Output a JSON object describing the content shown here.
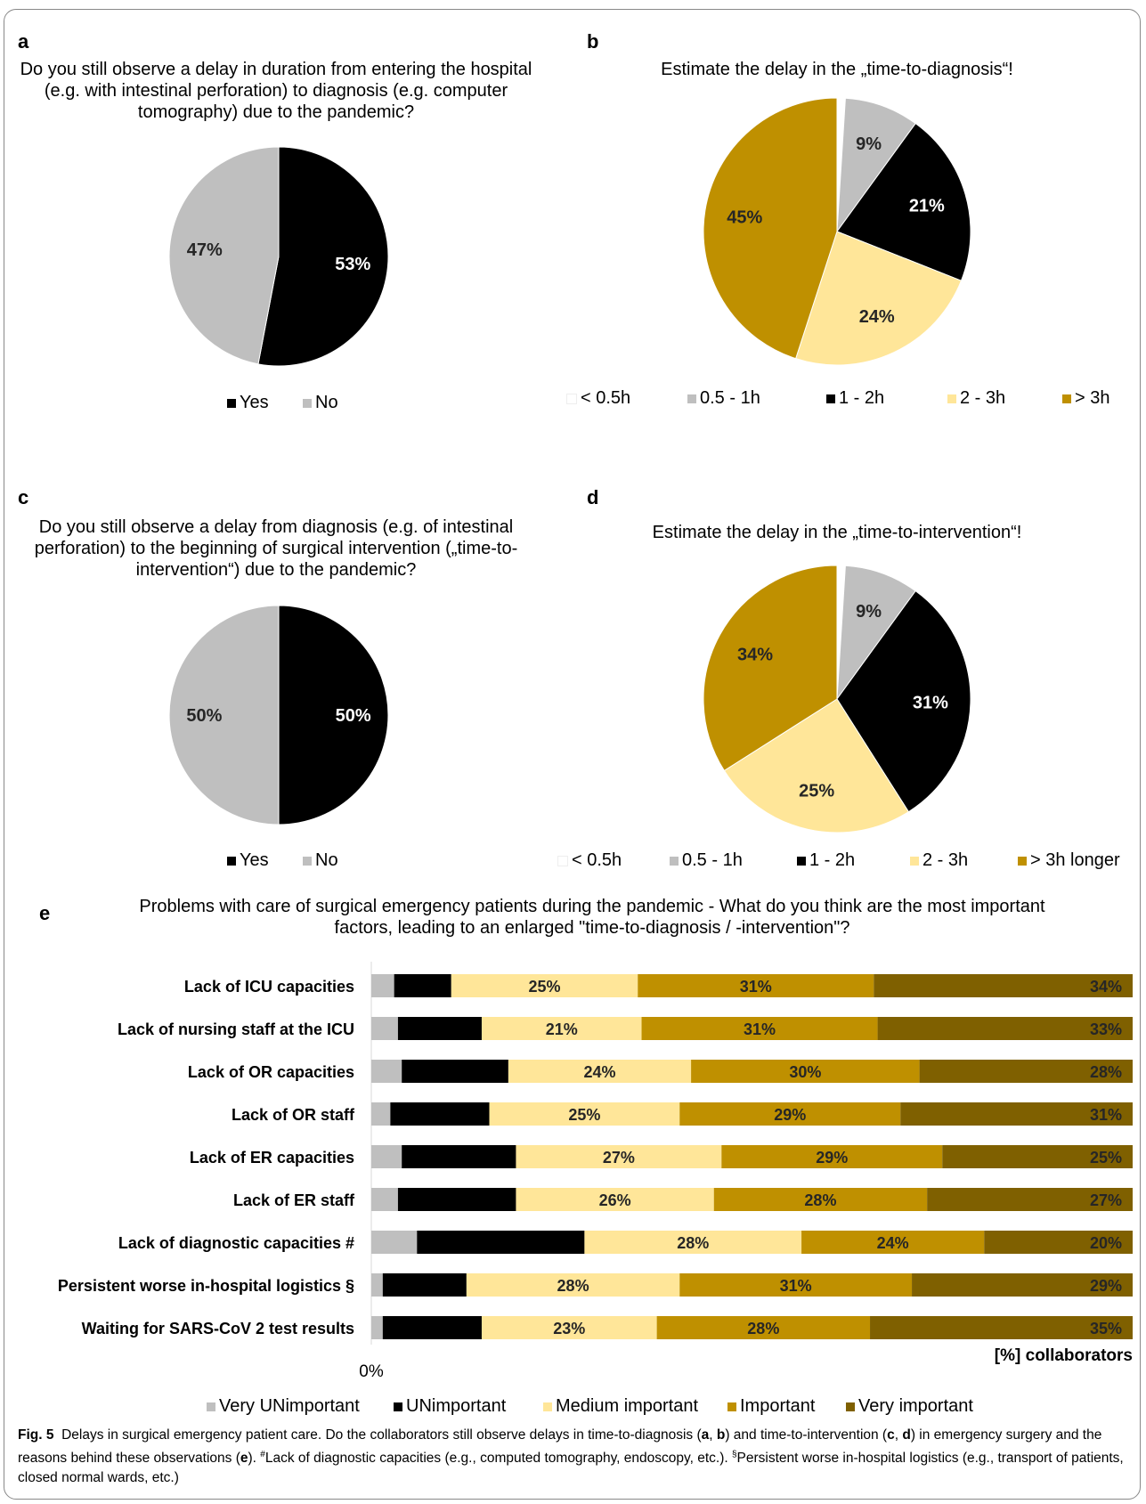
{
  "panels": {
    "a": {
      "letter": "a",
      "title": "Do you still observe a delay in duration from entering the hospital (e.g. with intestinal perforation) to diagnosis (e.g. computer tomography) due to the pandemic?"
    },
    "b": {
      "letter": "b",
      "title": "Estimate the delay in the „time-to-diagnosis“!"
    },
    "c": {
      "letter": "c",
      "title": "Do you still observe a delay from diagnosis (e.g. of intestinal perforation) to the beginning of surgical intervention („time-to-intervention“) due to the pandemic?"
    },
    "d": {
      "letter": "d",
      "title": "Estimate the delay in the „time-to-intervention“!"
    },
    "e": {
      "letter": "e",
      "title": "Problems with care of surgical emergency patients during the pandemic - What do you think are the most important factors, leading to an enlarged \"time-to-diagnosis / -intervention\"?"
    }
  },
  "chart_data": [
    {
      "type": "pie",
      "panel": "a",
      "categories": [
        "Yes",
        "No"
      ],
      "values": [
        53,
        47
      ],
      "labels": [
        "53%",
        "47%"
      ],
      "colors": [
        "#000000",
        "#bfbfbf"
      ],
      "legend": {
        "position": "bottom",
        "entries": [
          "Yes",
          "No"
        ]
      }
    },
    {
      "type": "pie",
      "panel": "b",
      "categories": [
        "< 0.5h",
        "0.5 - 1h",
        "1 - 2h",
        "2 - 3h",
        "> 3h"
      ],
      "values": [
        1,
        9,
        21,
        24,
        45
      ],
      "labels": [
        "",
        "9%",
        "21%",
        "24%",
        "45%"
      ],
      "colors": [
        "#ffffff",
        "#bfbfbf",
        "#000000",
        "#ffe699",
        "#bf9000"
      ],
      "legend": {
        "position": "bottom",
        "entries": [
          "< 0.5h",
          "0.5 - 1h",
          "1 - 2h",
          "2 - 3h",
          "> 3h"
        ]
      }
    },
    {
      "type": "pie",
      "panel": "c",
      "categories": [
        "Yes",
        "No"
      ],
      "values": [
        50,
        50
      ],
      "labels": [
        "50%",
        "50%"
      ],
      "colors": [
        "#000000",
        "#bfbfbf"
      ],
      "legend": {
        "position": "bottom",
        "entries": [
          "Yes",
          "No"
        ]
      }
    },
    {
      "type": "pie",
      "panel": "d",
      "categories": [
        "< 0.5h",
        "0.5 - 1h",
        "1 - 2h",
        "2 - 3h",
        "> 3h longer"
      ],
      "values": [
        1,
        9,
        31,
        25,
        34
      ],
      "labels": [
        "",
        "9%",
        "31%",
        "25%",
        "34%"
      ],
      "colors": [
        "#ffffff",
        "#bfbfbf",
        "#000000",
        "#ffe699",
        "#bf9000"
      ],
      "legend": {
        "position": "bottom",
        "entries": [
          "< 0.5h",
          "0.5 - 1h",
          "1 - 2h",
          "2 - 3h",
          "> 3h longer"
        ]
      }
    },
    {
      "type": "bar",
      "orientation": "horizontal",
      "stacked": true,
      "panel": "e",
      "categories": [
        "Lack of ICU capacities",
        "Lack of nursing staff at the ICU",
        "Lack of OR capacities",
        "Lack of OR staff",
        "Lack of ER capacities",
        "Lack of ER staff",
        "Lack of diagnostic capacities #",
        "Persistent worse in-hospital logistics §",
        "Waiting for SARS-CoV 2 test results"
      ],
      "series": [
        {
          "name": "Very UNimportant",
          "color": "#bfbfbf",
          "values": [
            3,
            3.5,
            4,
            2.5,
            4,
            3.5,
            6,
            1.5,
            1.5
          ],
          "labels": [
            "",
            "",
            "",
            "",
            "",
            "",
            "",
            "",
            ""
          ]
        },
        {
          "name": "UNimportant",
          "color": "#000000",
          "values": [
            7.5,
            11,
            14,
            13,
            15,
            15.5,
            22,
            11,
            13
          ],
          "labels": [
            "",
            "",
            "",
            "",
            "",
            "",
            "",
            "",
            ""
          ]
        },
        {
          "name": "Medium important",
          "color": "#ffe699",
          "values": [
            24.5,
            21,
            24,
            25,
            27,
            26,
            28.5,
            28,
            23
          ],
          "labels": [
            "25%",
            "21%",
            "24%",
            "25%",
            "27%",
            "26%",
            "28%",
            "28%",
            "23%"
          ]
        },
        {
          "name": "Important",
          "color": "#bf9000",
          "values": [
            31,
            31,
            30,
            29,
            29,
            28,
            24,
            30.5,
            28
          ],
          "labels": [
            "31%",
            "31%",
            "30%",
            "29%",
            "29%",
            "28%",
            "24%",
            "31%",
            "28%"
          ]
        },
        {
          "name": "Very important",
          "color": "#7f6000",
          "values": [
            34,
            33.5,
            28,
            30.5,
            25,
            27,
            19.5,
            29,
            34.5
          ],
          "labels": [
            "34%",
            "33%",
            "28%",
            "31%",
            "25%",
            "27%",
            "20%",
            "29%",
            "35%"
          ]
        }
      ],
      "x_tick": "0%",
      "xlabel": "[%] collaborators",
      "xlim": [
        0,
        100
      ],
      "legend": {
        "position": "bottom"
      }
    }
  ],
  "caption": {
    "fig_label": "Fig. 5",
    "text1": "Delays in surgical emergency patient care. Do the collaborators still observe delays in time-to-diagnosis (",
    "a": "a",
    "sep1": ", ",
    "b": "b",
    "text2": ") and time-to-intervention (",
    "c": "c",
    "sep2": ", ",
    "d": "d",
    "text3": ") in emergency surgery and the reasons behind these observations (",
    "e": "e",
    "text4": "). ",
    "hash": "#",
    "note1": "Lack of diagnostic capacities (e.g., computed tomography, endoscopy, etc.). ",
    "sect": "§",
    "note2": "Persistent worse in-hospital logistics (e.g., transport of patients, closed normal wards, etc.)"
  }
}
